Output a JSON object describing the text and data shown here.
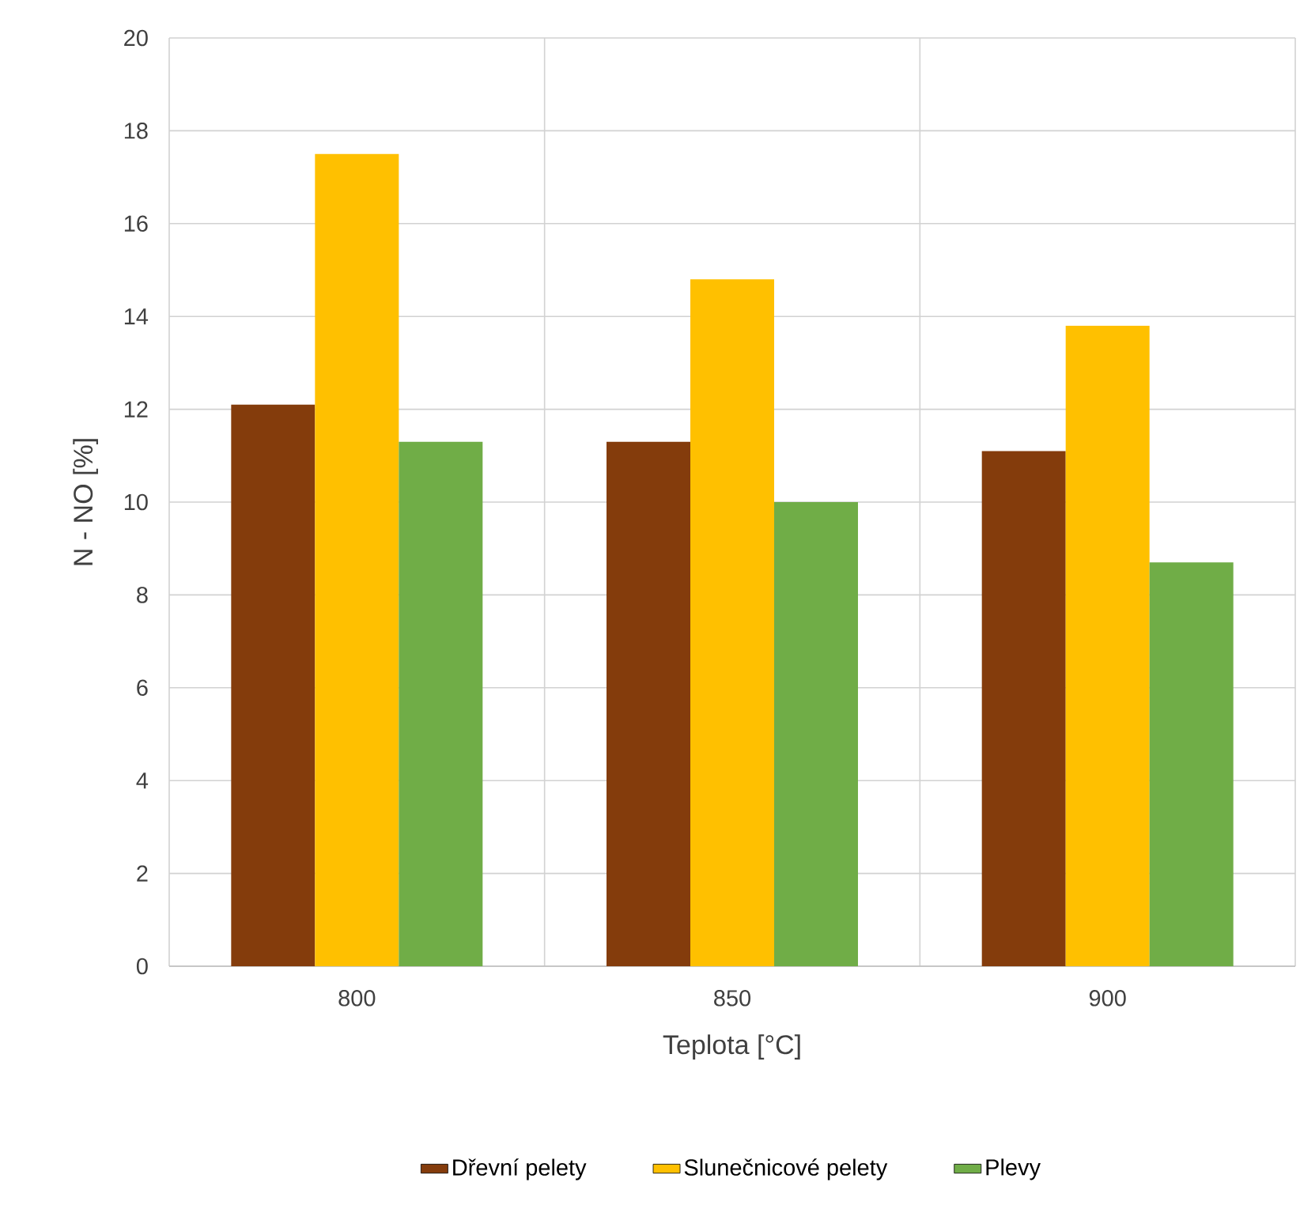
{
  "chart_data": {
    "type": "bar",
    "xlabel": "Teplota [°C]",
    "ylabel": "N - NO [%]",
    "categories": [
      "800",
      "850",
      "900"
    ],
    "series": [
      {
        "name": "Dřevní pelety",
        "color": "#843c0c",
        "values": [
          12.1,
          11.3,
          11.1
        ]
      },
      {
        "name": "Slunečnicové pelety",
        "color": "#ffc000",
        "values": [
          17.5,
          14.8,
          13.8
        ]
      },
      {
        "name": "Plevy",
        "color": "#70ad47",
        "values": [
          11.3,
          10.0,
          8.7
        ]
      }
    ],
    "ylim": [
      0,
      20
    ],
    "yticks": [
      0,
      2,
      4,
      6,
      8,
      10,
      12,
      14,
      16,
      18,
      20
    ],
    "grid": true,
    "legend": "bottom"
  }
}
